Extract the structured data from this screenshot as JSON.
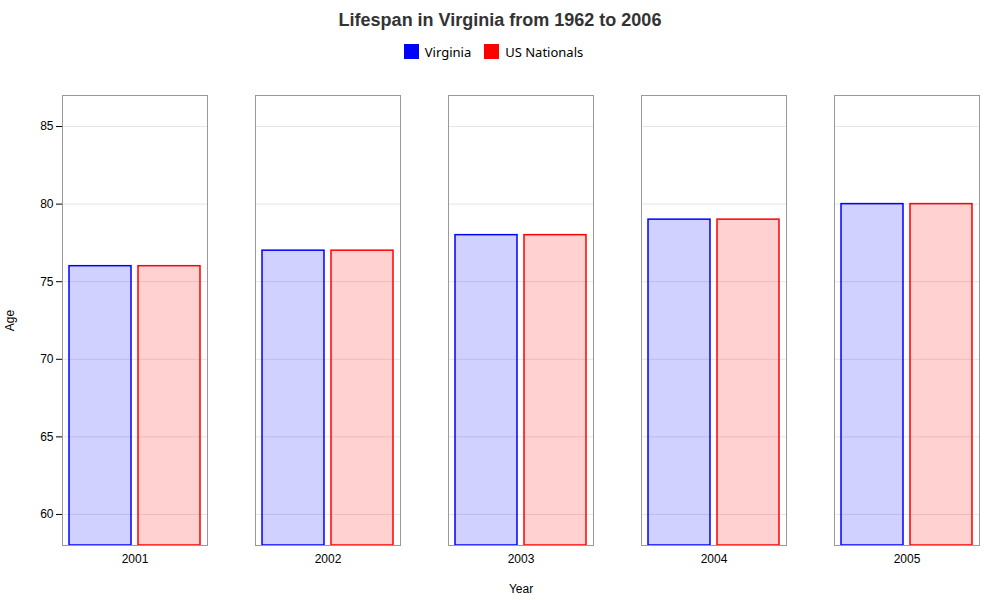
{
  "chart_data": {
    "type": "bar",
    "title": "Lifespan in Virginia from 1962 to 2006",
    "categories": [
      "2001",
      "2002",
      "2003",
      "2004",
      "2005"
    ],
    "series": [
      {
        "name": "Virginia",
        "color": "#0000ff",
        "values": [
          76,
          77,
          78,
          79,
          80
        ]
      },
      {
        "name": "US Nationals",
        "color": "#ff0000",
        "values": [
          76,
          77,
          78,
          79,
          80
        ]
      }
    ],
    "xlabel": "Year",
    "ylabel": "Age",
    "ylim": [
      58,
      87
    ],
    "yticks": [
      60,
      65,
      70,
      75,
      80,
      85
    ],
    "grid": true,
    "legend": "top"
  }
}
